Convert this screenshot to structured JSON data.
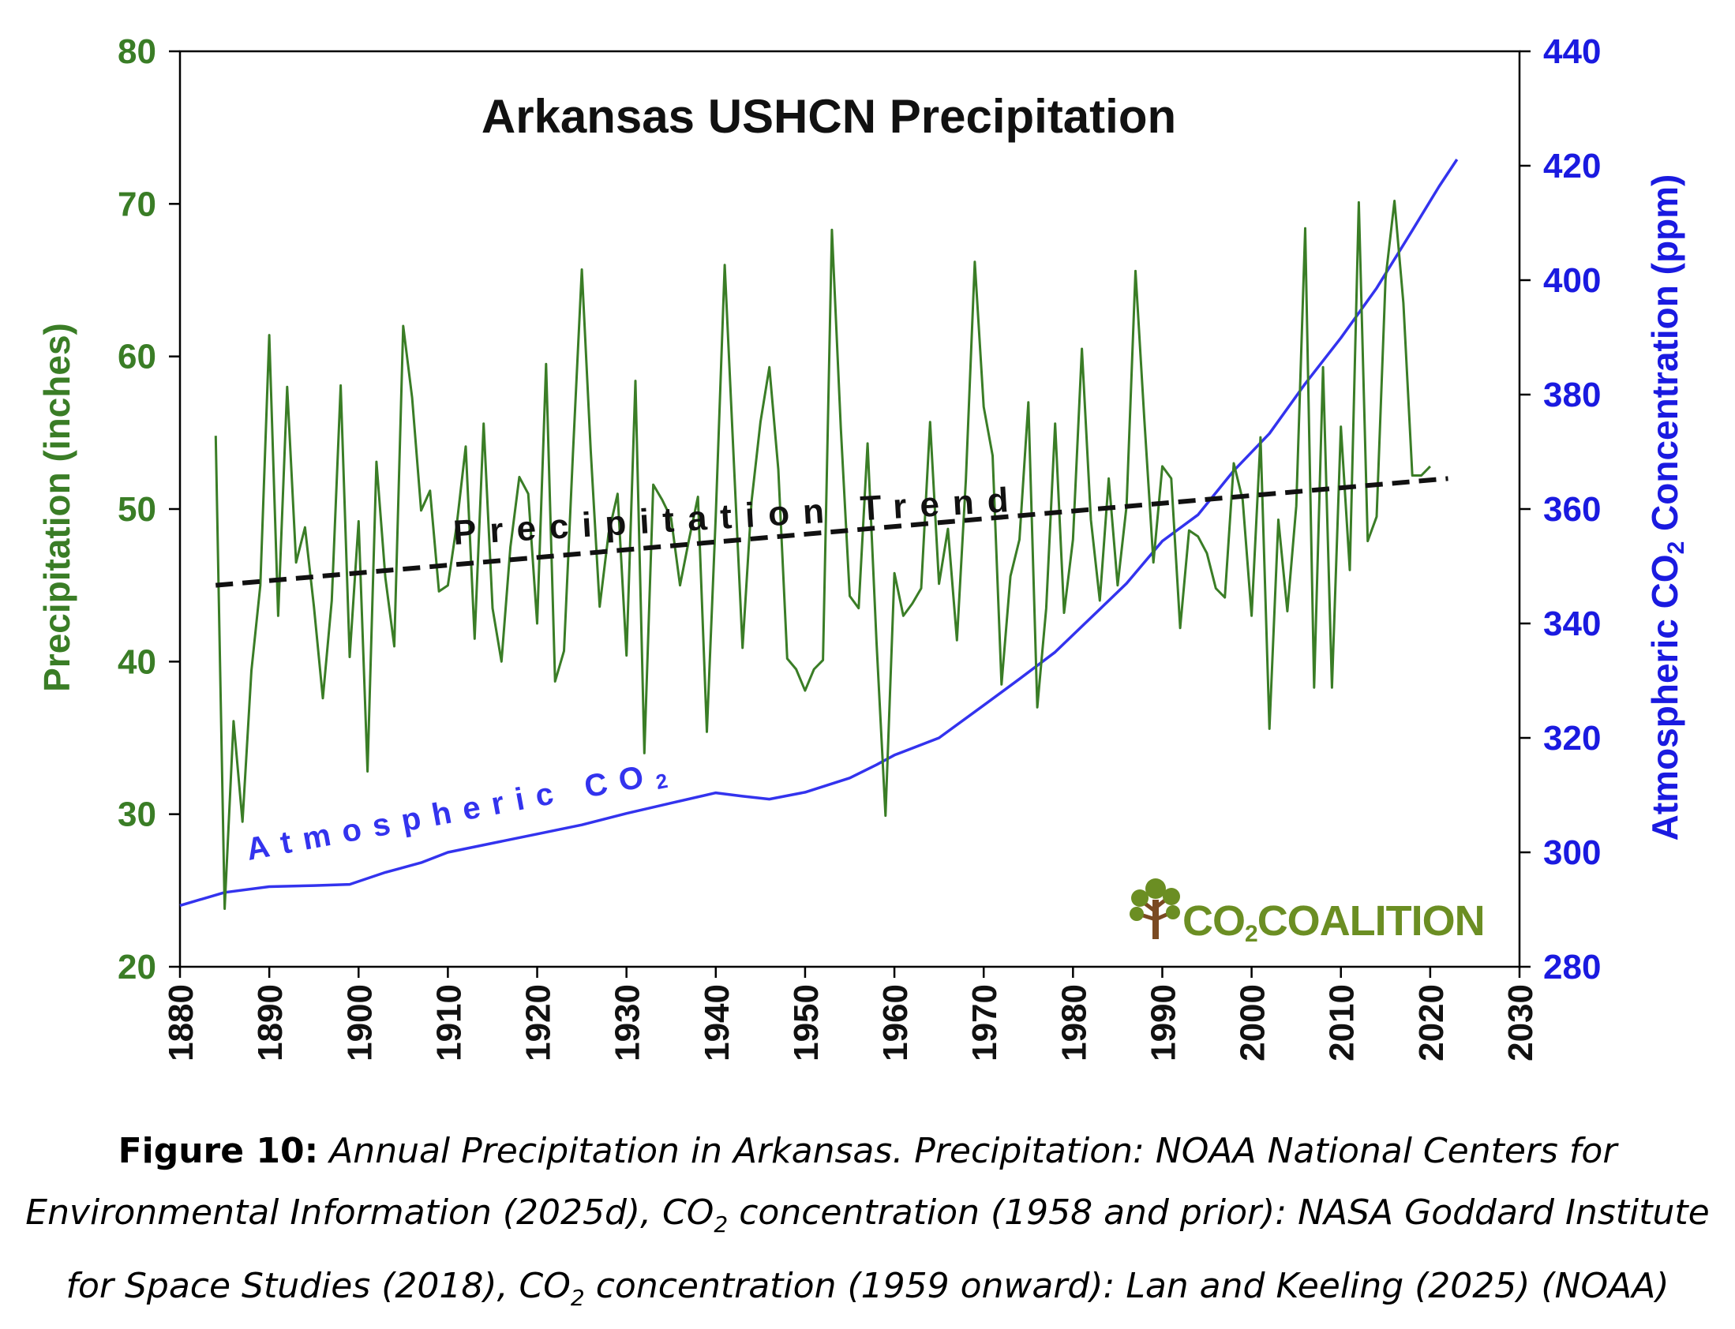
{
  "chart_data": {
    "type": "line",
    "title": "Arkansas USHCN Precipitation",
    "xlabel": "",
    "x_ticks": [
      1880,
      1890,
      1900,
      1910,
      1920,
      1930,
      1940,
      1950,
      1960,
      1970,
      1980,
      1990,
      2000,
      2010,
      2020,
      2030
    ],
    "xlim": [
      1880,
      2030
    ],
    "ylabel_left": "Precipitation (inches)",
    "ylim_left": [
      20,
      80
    ],
    "y_ticks_left": [
      20,
      30,
      40,
      50,
      60,
      70,
      80
    ],
    "ylabel_right_prefix": "Atmospheric CO",
    "ylabel_right_sub": "2",
    "ylabel_right_suffix": " Concentration (ppm)",
    "ylim_right": [
      280,
      440
    ],
    "y_ticks_right": [
      280,
      300,
      320,
      340,
      360,
      380,
      400,
      420,
      440
    ],
    "annotations": {
      "trend_label": "Precipitation Trend",
      "co2_label": "Atmospheric CO",
      "co2_label_sub": "2"
    },
    "colors": {
      "precip": "#3a7d26",
      "co2": "#3333ee",
      "trend": "#111111",
      "left_axis": "#3a7d26",
      "right_axis": "#1a1ae0",
      "logo": "#6b8e23",
      "logo_trunk": "#7a4a22"
    },
    "series": [
      {
        "name": "Precipitation",
        "axis": "left",
        "x_start": 1884,
        "values": [
          54.8,
          23.8,
          36.1,
          29.5,
          39.4,
          45.0,
          61.4,
          43.0,
          58.0,
          46.5,
          48.8,
          43.6,
          37.6,
          44.0,
          58.1,
          40.3,
          49.2,
          32.8,
          53.1,
          45.5,
          41.0,
          62.0,
          57.3,
          49.9,
          51.2,
          44.6,
          45.0,
          49.0,
          54.1,
          41.5,
          55.6,
          43.5,
          40.0,
          47.5,
          52.1,
          51.0,
          42.5,
          59.5,
          38.7,
          40.7,
          53.6,
          65.7,
          53.8,
          43.6,
          48.4,
          51.0,
          40.4,
          58.4,
          34.0,
          51.6,
          50.6,
          49.4,
          45.0,
          48.0,
          50.8,
          35.4,
          49.6,
          66.0,
          53.4,
          40.9,
          50.5,
          55.7,
          59.3,
          52.6,
          40.2,
          39.5,
          38.1,
          39.5,
          40.1,
          68.3,
          55.3,
          44.3,
          43.5,
          54.3,
          41.3,
          29.9,
          45.8,
          43.0,
          43.8,
          44.8,
          55.7,
          45.1,
          48.7,
          41.4,
          51.9,
          66.2,
          56.7,
          53.5,
          38.5,
          45.6,
          48.0,
          57.0,
          37.0,
          43.5,
          55.6,
          43.2,
          48.0,
          60.5,
          49.3,
          44.0,
          52.0,
          45.0,
          50.2,
          65.6,
          55.8,
          46.5,
          52.8,
          52.0,
          42.2,
          48.6,
          48.2,
          47.1,
          44.8,
          44.2,
          53.0,
          50.6,
          43.0,
          54.7,
          35.6,
          49.3,
          43.3,
          50.2,
          68.4,
          38.3,
          59.3,
          38.3,
          55.4,
          46.0,
          70.1,
          47.9,
          49.5,
          65.1,
          70.2,
          63.5,
          52.2,
          52.2,
          52.8
        ]
      },
      {
        "name": "Atmospheric CO2",
        "axis": "right",
        "points": [
          [
            1880,
            290.7
          ],
          [
            1885,
            293.0
          ],
          [
            1890,
            294.0
          ],
          [
            1895,
            294.2
          ],
          [
            1899,
            294.4
          ],
          [
            1903,
            296.5
          ],
          [
            1907,
            298.2
          ],
          [
            1910,
            300.0
          ],
          [
            1915,
            301.6
          ],
          [
            1920,
            303.2
          ],
          [
            1925,
            304.8
          ],
          [
            1930,
            306.8
          ],
          [
            1935,
            308.6
          ],
          [
            1940,
            310.4
          ],
          [
            1943,
            309.8
          ],
          [
            1946,
            309.3
          ],
          [
            1950,
            310.5
          ],
          [
            1955,
            313.0
          ],
          [
            1958,
            315.3
          ],
          [
            1960,
            317.0
          ],
          [
            1965,
            320.0
          ],
          [
            1970,
            325.7
          ],
          [
            1974,
            330.3
          ],
          [
            1978,
            335.0
          ],
          [
            1982,
            341.0
          ],
          [
            1986,
            347.0
          ],
          [
            1990,
            354.4
          ],
          [
            1994,
            359.0
          ],
          [
            1998,
            366.7
          ],
          [
            2002,
            373.2
          ],
          [
            2006,
            381.9
          ],
          [
            2010,
            389.9
          ],
          [
            2014,
            398.6
          ],
          [
            2018,
            408.7
          ],
          [
            2021,
            416.4
          ],
          [
            2023,
            421.1
          ]
        ]
      },
      {
        "name": "Precipitation Trend",
        "axis": "left",
        "style": "dashed",
        "x": [
          1884,
          2022
        ],
        "values": [
          45.0,
          52.0
        ]
      }
    ]
  },
  "logo": {
    "text_prefix": "CO",
    "text_sub": "2",
    "text_suffix": "COALITION"
  },
  "caption": {
    "label": "Figure 10:",
    "line1": " Annual Precipitation in Arkansas. Precipitation: NOAA National Centers for",
    "line2a": "Environmental Information (2025d), CO",
    "line2_sub": "2",
    "line2b": " concentration (1958 and prior): NASA Goddard Institute",
    "line3a": "for Space Studies (2018), CO",
    "line3_sub": "2",
    "line3b": " concentration (1959 onward): Lan and Keeling (2025) (NOAA)"
  }
}
